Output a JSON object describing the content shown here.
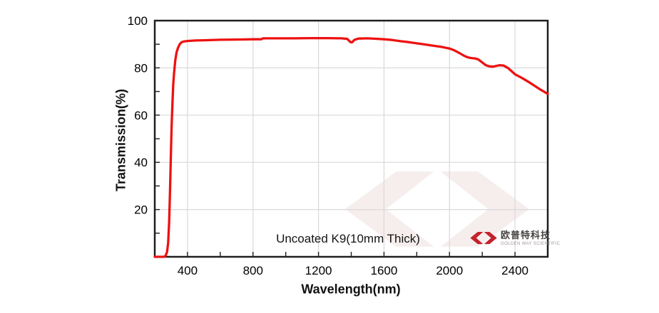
{
  "chart_data": {
    "type": "line",
    "title": "",
    "xlabel": "Wavelength(nm)",
    "ylabel": "Transmission(%)",
    "xlim": [
      200,
      2600
    ],
    "ylim": [
      0,
      100
    ],
    "xticks": [
      400,
      800,
      1200,
      1600,
      2000,
      2400
    ],
    "yticks": [
      20,
      40,
      60,
      80,
      100
    ],
    "x_minor_step": 200,
    "y_minor_step": 10,
    "grid": true,
    "legend_position": "none",
    "annotation": "Uncoated K9(10mm Thick)",
    "series": [
      {
        "name": "Uncoated K9 (10mm Thick)",
        "color": "#ee1111",
        "points": [
          [
            200,
            0
          ],
          [
            255,
            0
          ],
          [
            265,
            0.3
          ],
          [
            275,
            2
          ],
          [
            282,
            6
          ],
          [
            288,
            15
          ],
          [
            293,
            28
          ],
          [
            298,
            42
          ],
          [
            303,
            55
          ],
          [
            308,
            65
          ],
          [
            313,
            73
          ],
          [
            318,
            78
          ],
          [
            325,
            83
          ],
          [
            333,
            86.5
          ],
          [
            342,
            88.5
          ],
          [
            352,
            90
          ],
          [
            365,
            90.9
          ],
          [
            380,
            91.2
          ],
          [
            400,
            91.4
          ],
          [
            450,
            91.6
          ],
          [
            500,
            91.7
          ],
          [
            600,
            91.9
          ],
          [
            700,
            92
          ],
          [
            800,
            92.1
          ],
          [
            850,
            92.1
          ],
          [
            862,
            92.5
          ],
          [
            950,
            92.5
          ],
          [
            1050,
            92.5
          ],
          [
            1150,
            92.6
          ],
          [
            1250,
            92.6
          ],
          [
            1340,
            92.5
          ],
          [
            1375,
            92.3
          ],
          [
            1395,
            90.9
          ],
          [
            1405,
            90.8
          ],
          [
            1420,
            91.9
          ],
          [
            1445,
            92.4
          ],
          [
            1500,
            92.5
          ],
          [
            1560,
            92.3
          ],
          [
            1600,
            92.1
          ],
          [
            1650,
            91.8
          ],
          [
            1700,
            91.3
          ],
          [
            1750,
            90.9
          ],
          [
            1800,
            90.4
          ],
          [
            1850,
            89.9
          ],
          [
            1900,
            89.4
          ],
          [
            1950,
            88.9
          ],
          [
            2000,
            88.2
          ],
          [
            2030,
            87.4
          ],
          [
            2060,
            86.3
          ],
          [
            2090,
            85.1
          ],
          [
            2110,
            84.5
          ],
          [
            2130,
            84.2
          ],
          [
            2155,
            84
          ],
          [
            2175,
            83.6
          ],
          [
            2200,
            82.3
          ],
          [
            2220,
            81.2
          ],
          [
            2240,
            80.7
          ],
          [
            2265,
            80.5
          ],
          [
            2285,
            80.8
          ],
          [
            2305,
            81.1
          ],
          [
            2330,
            81
          ],
          [
            2360,
            79.8
          ],
          [
            2400,
            77.3
          ],
          [
            2440,
            75.8
          ],
          [
            2480,
            74.2
          ],
          [
            2520,
            72.4
          ],
          [
            2560,
            70.6
          ],
          [
            2600,
            69
          ]
        ]
      }
    ]
  },
  "branding": {
    "company_cn": "欧普特科技",
    "company_en": "GOLDEN WAY SCIENTIFIC",
    "logo_color": "#c3232b",
    "watermark_color": "#f6eded"
  },
  "colors": {
    "background": "#ffffff",
    "grid": "#d9d9d9",
    "axis": "#1f1f1f",
    "tick_label": "#000000"
  }
}
